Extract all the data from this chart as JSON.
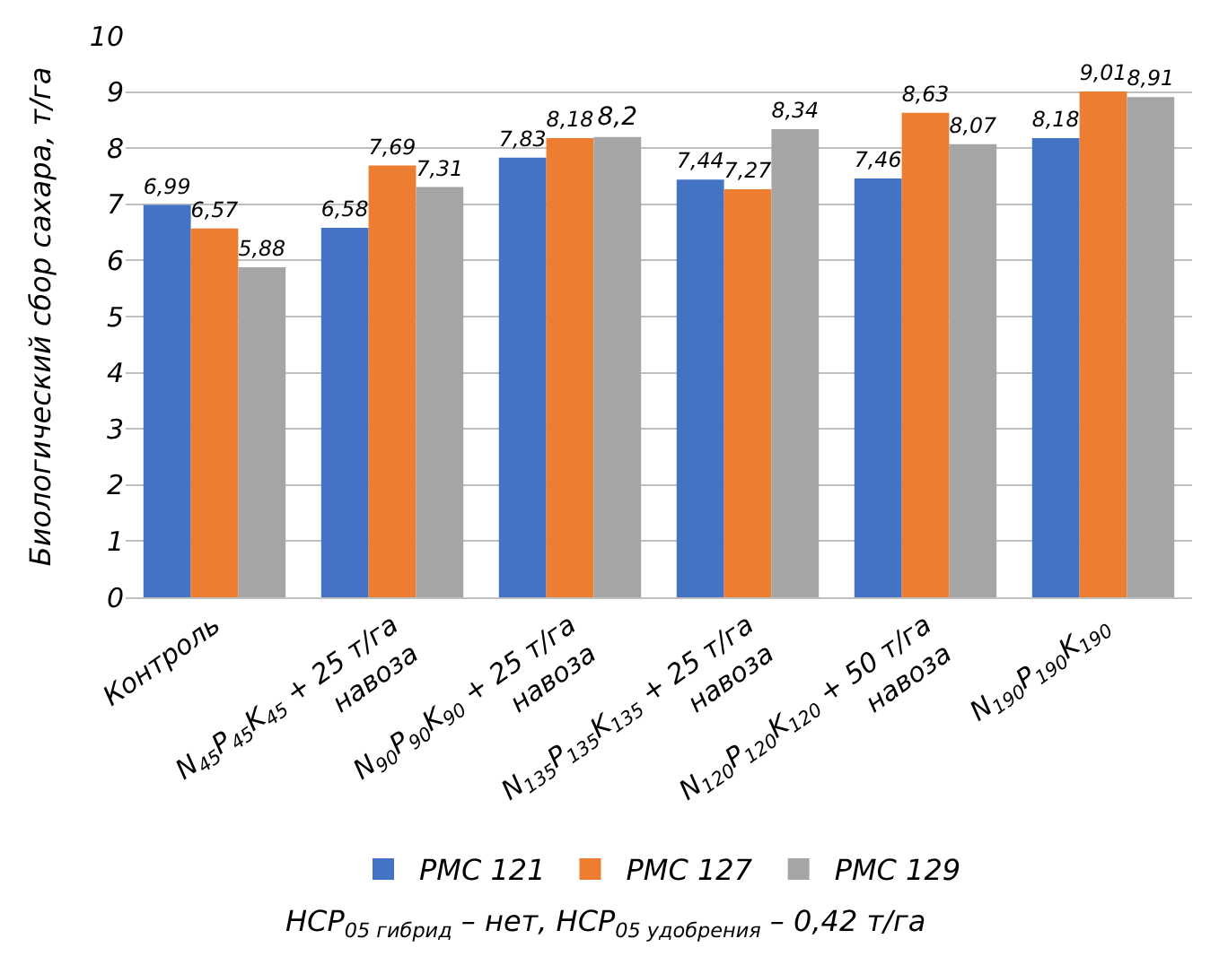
{
  "chart_data": {
    "type": "bar",
    "ylabel": "Биологический сбор сахара, т/га",
    "categories": [
      "Контроль",
      "N$_{45}$P$_{45}$K$_{45}$ + 25 т/га\nнавоза",
      "N$_{90}$P$_{90}$K$_{90}$ + 25 т/га\nнавоза",
      "N$_{135}$P$_{135}$K$_{135}$ + 25 т/га\nнавоза",
      "N$_{120}$P$_{120}$K$_{120}$ + 50 т/га\nнавоза",
      "N$_{190}$P$_{190}$K$_{190}$"
    ],
    "series": [
      {
        "name": "РМС 121",
        "color": "#4472c4",
        "values": [
          6.99,
          6.58,
          7.83,
          7.44,
          7.46,
          8.18
        ],
        "value_labels": [
          "6,99",
          "6,58",
          "7,83",
          "7,44",
          "7,46",
          "8,18"
        ]
      },
      {
        "name": "РМС 127",
        "color": "#ed7d31",
        "values": [
          6.57,
          7.69,
          8.18,
          7.27,
          8.63,
          9.01
        ],
        "value_labels": [
          "6,57",
          "7,69",
          "8,18",
          "7,27",
          "8,63",
          "9,01"
        ]
      },
      {
        "name": "РМС 129",
        "color": "#a5a5a5",
        "values": [
          5.88,
          7.31,
          8.2,
          8.34,
          8.07,
          8.91
        ],
        "value_labels": [
          "5,88",
          "7,31",
          "8,2",
          "8,34",
          "8,07",
          "8,91"
        ]
      }
    ],
    "ylim": [
      0,
      10
    ],
    "yticks": [
      0,
      1,
      2,
      3,
      4,
      5,
      6,
      7,
      8,
      9,
      10
    ],
    "grid": "y",
    "legend": "bottom",
    "annotations": [
      "НСР$_{05 гибрид}$ – нет, НСР$_{05 удобрения}$ – 0,42 т/га"
    ]
  }
}
